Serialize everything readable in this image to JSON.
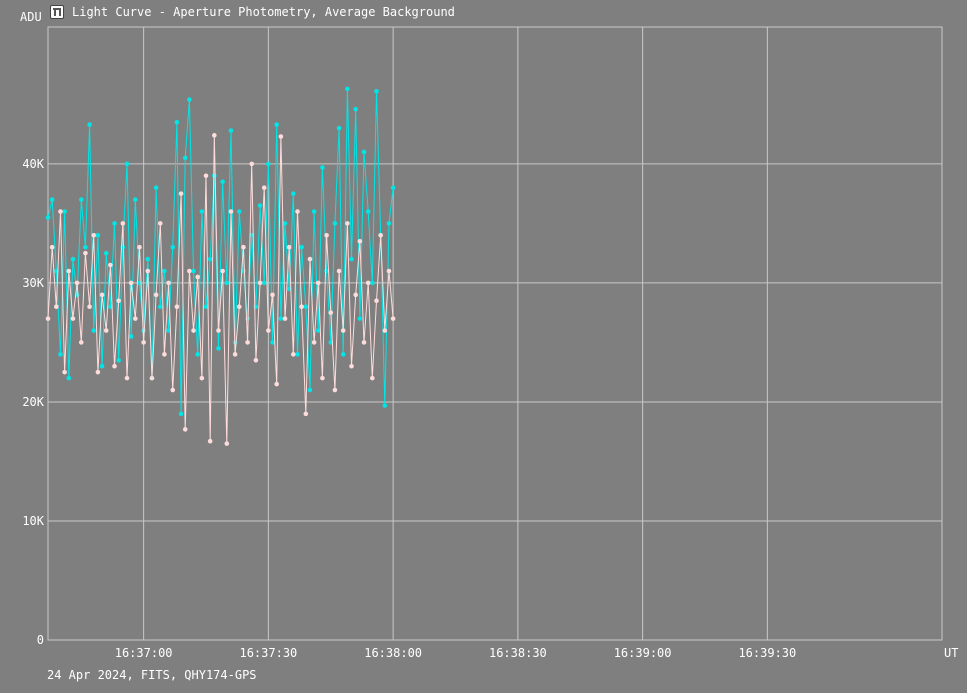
{
  "window": {
    "title": "Light Curve - Aperture Photometry, Average Background",
    "footer": "24 Apr 2024, FITS, QHY174-GPS"
  },
  "colors": {
    "background": "#7f7f7f",
    "grid": "#c8c8c8",
    "series_target": "#00e5e5",
    "series_comparison": "#ffdcdc"
  },
  "chart_data": {
    "type": "line",
    "title": "Light Curve - Aperture Photometry, Average Background",
    "xlabel": "UT",
    "ylabel": "ADU",
    "x_start": "16:36:37",
    "x_end": "16:40:12",
    "x_ticks": [
      "16:37:00",
      "16:37:30",
      "16:38:00",
      "16:38:30",
      "16:39:00",
      "16:39:30"
    ],
    "ylim": [
      0,
      51500
    ],
    "y_ticks": [
      0,
      10000,
      20000,
      30000,
      40000
    ],
    "y_tick_labels": [
      "0",
      "10K",
      "20K",
      "30K",
      "40K"
    ],
    "grid": true,
    "series": [
      {
        "color": "#00e5e5",
        "points": [
          [
            "16:36:37",
            35500
          ],
          [
            "16:36:38",
            37000
          ],
          [
            "16:36:39",
            31000
          ],
          [
            "16:36:40",
            24000
          ],
          [
            "16:36:41",
            36000
          ],
          [
            "16:36:42",
            22000
          ],
          [
            "16:36:43",
            32000
          ],
          [
            "16:36:44",
            29000
          ],
          [
            "16:36:45",
            37000
          ],
          [
            "16:36:46",
            33000
          ],
          [
            "16:36:47",
            43300
          ],
          [
            "16:36:48",
            26000
          ],
          [
            "16:36:49",
            34000
          ],
          [
            "16:36:50",
            23000
          ],
          [
            "16:36:51",
            32500
          ],
          [
            "16:36:52",
            28000
          ],
          [
            "16:36:53",
            35000
          ],
          [
            "16:36:54",
            23500
          ],
          [
            "16:36:55",
            33000
          ],
          [
            "16:36:56",
            40000
          ],
          [
            "16:36:57",
            25500
          ],
          [
            "16:36:58",
            37000
          ],
          [
            "16:36:59",
            30000
          ],
          [
            "16:37:00",
            26000
          ],
          [
            "16:37:01",
            32000
          ],
          [
            "16:37:02",
            22000
          ],
          [
            "16:37:03",
            38000
          ],
          [
            "16:37:04",
            28000
          ],
          [
            "16:37:05",
            31000
          ],
          [
            "16:37:06",
            26000
          ],
          [
            "16:37:07",
            33000
          ],
          [
            "16:37:08",
            43500
          ],
          [
            "16:37:09",
            19000
          ],
          [
            "16:37:10",
            40500
          ],
          [
            "16:37:11",
            45400
          ],
          [
            "16:37:12",
            31000
          ],
          [
            "16:37:13",
            24000
          ],
          [
            "16:37:14",
            36000
          ],
          [
            "16:37:15",
            28000
          ],
          [
            "16:37:16",
            32000
          ],
          [
            "16:37:17",
            39000
          ],
          [
            "16:37:18",
            24500
          ],
          [
            "16:37:19",
            38500
          ],
          [
            "16:37:20",
            30000
          ],
          [
            "16:37:21",
            42800
          ],
          [
            "16:37:22",
            25000
          ],
          [
            "16:37:23",
            36000
          ],
          [
            "16:37:24",
            31000
          ],
          [
            "16:37:25",
            27000
          ],
          [
            "16:37:26",
            34000
          ],
          [
            "16:37:27",
            28000
          ],
          [
            "16:37:28",
            36500
          ],
          [
            "16:37:29",
            30000
          ],
          [
            "16:37:30",
            40000
          ],
          [
            "16:37:31",
            25000
          ],
          [
            "16:37:32",
            43300
          ],
          [
            "16:37:33",
            27000
          ],
          [
            "16:37:34",
            35000
          ],
          [
            "16:37:35",
            29500
          ],
          [
            "16:37:36",
            37500
          ],
          [
            "16:37:37",
            24000
          ],
          [
            "16:37:38",
            33000
          ],
          [
            "16:37:39",
            28000
          ],
          [
            "16:37:40",
            21000
          ],
          [
            "16:37:41",
            36000
          ],
          [
            "16:37:42",
            26000
          ],
          [
            "16:37:43",
            39700
          ],
          [
            "16:37:44",
            31000
          ],
          [
            "16:37:45",
            25000
          ],
          [
            "16:37:46",
            35000
          ],
          [
            "16:37:47",
            43000
          ],
          [
            "16:37:48",
            24000
          ],
          [
            "16:37:49",
            46300
          ],
          [
            "16:37:50",
            32000
          ],
          [
            "16:37:51",
            44600
          ],
          [
            "16:37:52",
            27000
          ],
          [
            "16:37:53",
            41000
          ],
          [
            "16:37:54",
            36000
          ],
          [
            "16:37:55",
            30000
          ],
          [
            "16:37:56",
            46100
          ],
          [
            "16:37:57",
            34000
          ],
          [
            "16:37:58",
            19700
          ],
          [
            "16:37:59",
            35000
          ],
          [
            "16:38:00",
            38000
          ]
        ]
      },
      {
        "color": "#ffdcdc",
        "points": [
          [
            "16:36:37",
            27000
          ],
          [
            "16:36:38",
            33000
          ],
          [
            "16:36:39",
            28000
          ],
          [
            "16:36:40",
            36000
          ],
          [
            "16:36:41",
            22500
          ],
          [
            "16:36:42",
            31000
          ],
          [
            "16:36:43",
            27000
          ],
          [
            "16:36:44",
            30000
          ],
          [
            "16:36:45",
            25000
          ],
          [
            "16:36:46",
            32500
          ],
          [
            "16:36:47",
            28000
          ],
          [
            "16:36:48",
            34000
          ],
          [
            "16:36:49",
            22500
          ],
          [
            "16:36:50",
            29000
          ],
          [
            "16:36:51",
            26000
          ],
          [
            "16:36:52",
            31500
          ],
          [
            "16:36:53",
            23000
          ],
          [
            "16:36:54",
            28500
          ],
          [
            "16:36:55",
            35000
          ],
          [
            "16:36:56",
            22000
          ],
          [
            "16:36:57",
            30000
          ],
          [
            "16:36:58",
            27000
          ],
          [
            "16:36:59",
            33000
          ],
          [
            "16:37:00",
            25000
          ],
          [
            "16:37:01",
            31000
          ],
          [
            "16:37:02",
            22000
          ],
          [
            "16:37:03",
            29000
          ],
          [
            "16:37:04",
            35000
          ],
          [
            "16:37:05",
            24000
          ],
          [
            "16:37:06",
            30000
          ],
          [
            "16:37:07",
            21000
          ],
          [
            "16:37:08",
            28000
          ],
          [
            "16:37:09",
            37500
          ],
          [
            "16:37:10",
            17700
          ],
          [
            "16:37:11",
            31000
          ],
          [
            "16:37:12",
            26000
          ],
          [
            "16:37:13",
            30500
          ],
          [
            "16:37:14",
            22000
          ],
          [
            "16:37:15",
            39000
          ],
          [
            "16:37:16",
            16700
          ],
          [
            "16:37:17",
            42400
          ],
          [
            "16:37:18",
            26000
          ],
          [
            "16:37:19",
            31000
          ],
          [
            "16:37:20",
            16500
          ],
          [
            "16:37:21",
            36000
          ],
          [
            "16:37:22",
            24000
          ],
          [
            "16:37:23",
            28000
          ],
          [
            "16:37:24",
            33000
          ],
          [
            "16:37:25",
            25000
          ],
          [
            "16:37:26",
            40000
          ],
          [
            "16:37:27",
            23500
          ],
          [
            "16:37:28",
            30000
          ],
          [
            "16:37:29",
            38000
          ],
          [
            "16:37:30",
            26000
          ],
          [
            "16:37:31",
            29000
          ],
          [
            "16:37:32",
            21500
          ],
          [
            "16:37:33",
            42300
          ],
          [
            "16:37:34",
            27000
          ],
          [
            "16:37:35",
            33000
          ],
          [
            "16:37:36",
            24000
          ],
          [
            "16:37:37",
            36000
          ],
          [
            "16:37:38",
            28000
          ],
          [
            "16:37:39",
            19000
          ],
          [
            "16:37:40",
            32000
          ],
          [
            "16:37:41",
            25000
          ],
          [
            "16:37:42",
            30000
          ],
          [
            "16:37:43",
            22000
          ],
          [
            "16:37:44",
            34000
          ],
          [
            "16:37:45",
            27500
          ],
          [
            "16:37:46",
            21000
          ],
          [
            "16:37:47",
            31000
          ],
          [
            "16:37:48",
            26000
          ],
          [
            "16:37:49",
            35000
          ],
          [
            "16:37:50",
            23000
          ],
          [
            "16:37:51",
            29000
          ],
          [
            "16:37:52",
            33500
          ],
          [
            "16:37:53",
            25000
          ],
          [
            "16:37:54",
            30000
          ],
          [
            "16:37:55",
            22000
          ],
          [
            "16:37:56",
            28500
          ],
          [
            "16:37:57",
            34000
          ],
          [
            "16:37:58",
            26000
          ],
          [
            "16:37:59",
            31000
          ],
          [
            "16:38:00",
            27000
          ]
        ]
      }
    ]
  }
}
